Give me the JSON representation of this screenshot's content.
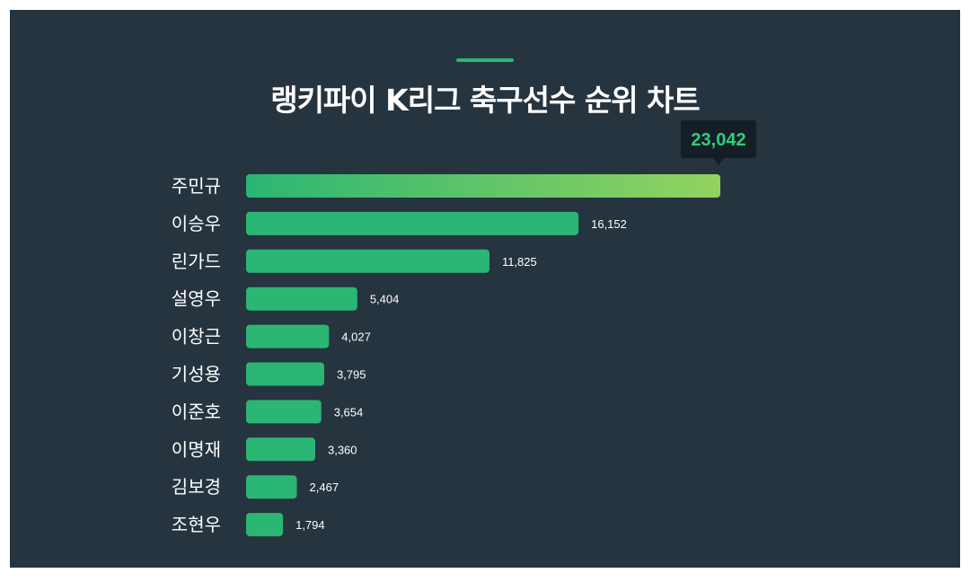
{
  "title": "랭키파이 K리그 축구선수 순위 차트",
  "colors": {
    "background": "#26343f",
    "bar": "#2bb673",
    "bar_top_start": "#2bb673",
    "bar_top_end": "#93d35f",
    "tooltip_bg": "#141e26",
    "tooltip_text": "#2bcf7c",
    "text": "#ffffff"
  },
  "chart_data": {
    "type": "bar",
    "orientation": "horizontal",
    "title": "랭키파이 K리그 축구선수 순위 차트",
    "categories": [
      "주민규",
      "이승우",
      "린가드",
      "설영우",
      "이창근",
      "기성용",
      "이준호",
      "이명재",
      "김보경",
      "조현우"
    ],
    "values": [
      23042,
      16152,
      11825,
      5404,
      4027,
      3795,
      3654,
      3360,
      2467,
      1794
    ],
    "value_labels": [
      "23,042",
      "16,152",
      "11,825",
      "5,404",
      "4,027",
      "3,795",
      "3,654",
      "3,360",
      "2,467",
      "1,794"
    ],
    "xlim": [
      0,
      23042
    ],
    "highlight_index": 0,
    "grid": false,
    "legend": "none"
  }
}
